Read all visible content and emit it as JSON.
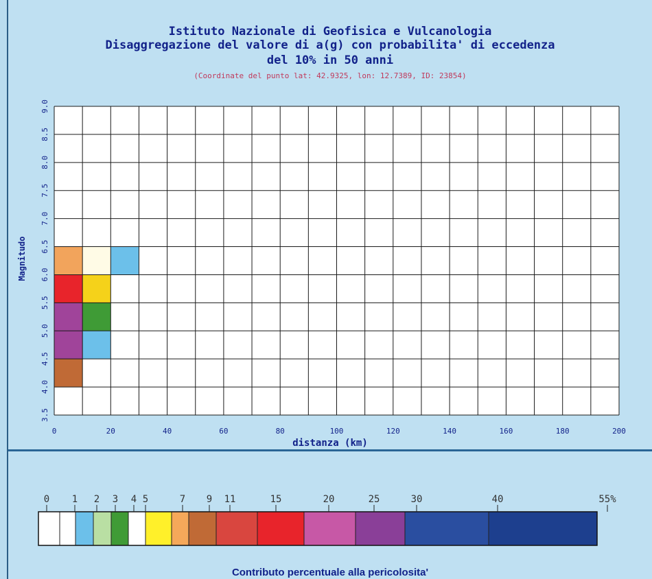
{
  "header": {
    "title_line1": "Istituto Nazionale di Geofisica e Vulcanologia",
    "title_line2": "Disaggregazione del valore di a(g) con probabilita' di eccedenza",
    "title_line3": "del 10% in 50 anni",
    "coordinates": "(Coordinate del punto lat: 42.9325, lon: 12.7389, ID: 23854)"
  },
  "chart_data": {
    "type": "heatmap",
    "xlabel": "distanza (km)",
    "ylabel": "Magnitudo",
    "xlim": [
      0,
      200
    ],
    "ylim": [
      3.5,
      9.0
    ],
    "x_ticks": [
      "0",
      "20",
      "40",
      "60",
      "80",
      "100",
      "120",
      "140",
      "160",
      "180",
      "200"
    ],
    "y_ticks": [
      "3.5",
      "4.0",
      "4.5",
      "5.0",
      "5.5",
      "6.0",
      "6.5",
      "7.0",
      "7.5",
      "8.0",
      "8.5",
      "9.0"
    ],
    "x_bin_width": 10,
    "y_bin_width": 0.5,
    "grid": true,
    "cells": [
      {
        "x": [
          0,
          10
        ],
        "y": [
          6.0,
          6.5
        ],
        "color": "#f2a45c"
      },
      {
        "x": [
          10,
          20
        ],
        "y": [
          6.0,
          6.5
        ],
        "color": "#fffbe6"
      },
      {
        "x": [
          20,
          30
        ],
        "y": [
          6.0,
          6.5
        ],
        "color": "#6cc0ea"
      },
      {
        "x": [
          0,
          10
        ],
        "y": [
          5.5,
          6.0
        ],
        "color": "#e8242b"
      },
      {
        "x": [
          10,
          20
        ],
        "y": [
          5.5,
          6.0
        ],
        "color": "#f5d21a"
      },
      {
        "x": [
          0,
          10
        ],
        "y": [
          5.0,
          5.5
        ],
        "color": "#a0449a"
      },
      {
        "x": [
          10,
          20
        ],
        "y": [
          5.0,
          5.5
        ],
        "color": "#3f9b36"
      },
      {
        "x": [
          0,
          10
        ],
        "y": [
          4.5,
          5.0
        ],
        "color": "#a0449a"
      },
      {
        "x": [
          10,
          20
        ],
        "y": [
          4.5,
          5.0
        ],
        "color": "#6cc0ea"
      },
      {
        "x": [
          0,
          10
        ],
        "y": [
          4.0,
          4.5
        ],
        "color": "#c06a36"
      }
    ]
  },
  "legend": {
    "labels": [
      "0",
      "1",
      "2",
      "3",
      "4",
      "5",
      "7",
      "9",
      "11",
      "15",
      "20",
      "25",
      "30",
      "40",
      "55%"
    ],
    "boundaries": [
      0,
      1,
      2,
      3,
      4,
      5,
      7,
      9,
      11,
      15,
      20,
      25,
      30,
      40,
      55
    ],
    "colors": [
      "#ffffff",
      "#6cc0ea",
      "#b9dfa3",
      "#3f9b36",
      "#ffffff",
      "#fff02a",
      "#f5a85a",
      "#c06a36",
      "#d9463f",
      "#e8242b",
      "#c758a6",
      "#8a3f98",
      "#2a4ea0",
      "#1d3f8e"
    ],
    "caption": "Contributo percentuale alla pericolosita'"
  },
  "colors": {
    "background": "#bfe0f2",
    "plot_bg": "#ffffff",
    "title": "#12228a",
    "coords": "#c0395b",
    "divider": "#2a6596"
  }
}
